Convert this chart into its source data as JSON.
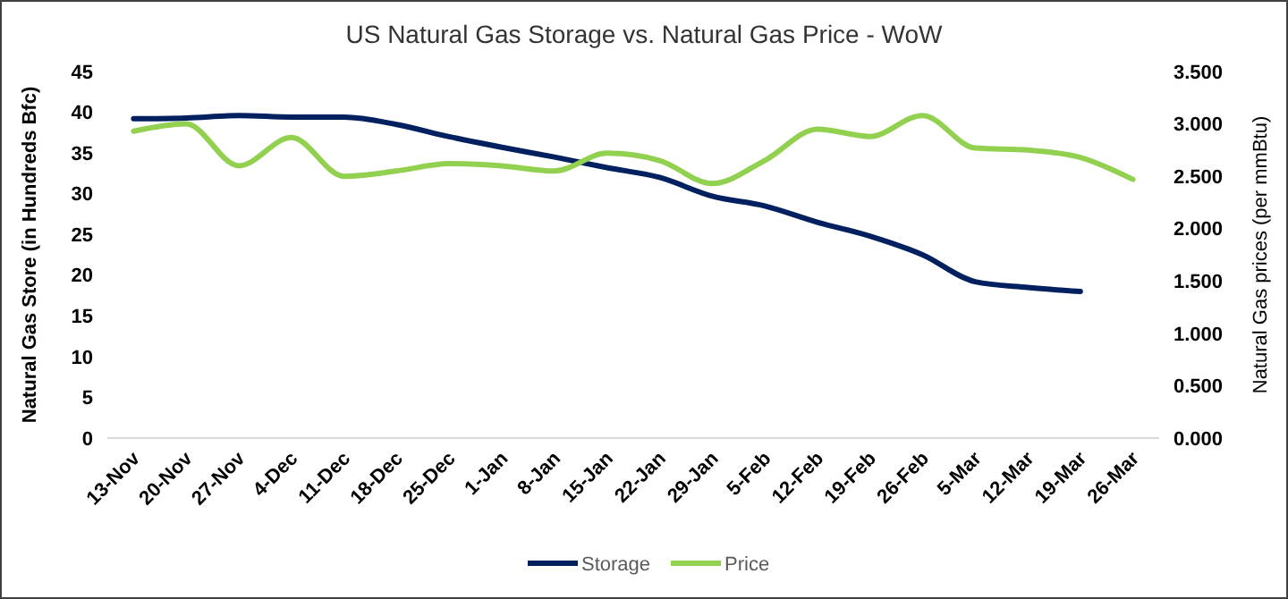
{
  "chart_data": {
    "type": "line",
    "title": "US Natural Gas Storage vs. Natural Gas Price - WoW",
    "ylabel": "Natural Gas Store (in Hundreds Bfc)",
    "y2label": "Natural Gas prices (per mmBtu)",
    "categories": [
      "13-Nov",
      "20-Nov",
      "27-Nov",
      "4-Dec",
      "11-Dec",
      "18-Dec",
      "25-Dec",
      "1-Jan",
      "8-Jan",
      "15-Jan",
      "22-Jan",
      "29-Jan",
      "5-Feb",
      "12-Feb",
      "19-Feb",
      "26-Feb",
      "5-Mar",
      "12-Mar",
      "19-Mar",
      "26-Mar"
    ],
    "series": [
      {
        "name": "Storage",
        "color": "#002060",
        "values": [
          39.2,
          39.3,
          39.6,
          39.4,
          39.4,
          38.5,
          37,
          35.7,
          34.5,
          33.2,
          32,
          29.7,
          28.5,
          26.5,
          24.8,
          22.5,
          19.2,
          18.5,
          18,
          null
        ]
      },
      {
        "name": "Price",
        "color": "#92d050",
        "axis": "y2",
        "values": [
          2.93,
          3.0,
          2.6,
          2.87,
          2.5,
          2.55,
          2.62,
          2.6,
          2.55,
          2.72,
          2.65,
          2.43,
          2.65,
          2.95,
          2.88,
          3.08,
          2.77,
          2.75,
          2.68,
          2.47
        ]
      }
    ],
    "ylim": [
      0,
      45
    ],
    "yticks": [
      0,
      5,
      10,
      15,
      20,
      25,
      30,
      35,
      40,
      45
    ],
    "y2lim": [
      0,
      3.5
    ],
    "y2ticks": [
      {
        "value": 0,
        "label": "0.000"
      },
      {
        "value": 0.5,
        "label": "0.500"
      },
      {
        "value": 1,
        "label": "1.000"
      },
      {
        "value": 1.5,
        "label": "1.500"
      },
      {
        "value": 2,
        "label": "2.000"
      },
      {
        "value": 2.5,
        "label": "2.500"
      },
      {
        "value": 3,
        "label": "3.000"
      },
      {
        "value": 3.5,
        "label": "3.500"
      }
    ],
    "grid": false,
    "legend": "bottom"
  }
}
